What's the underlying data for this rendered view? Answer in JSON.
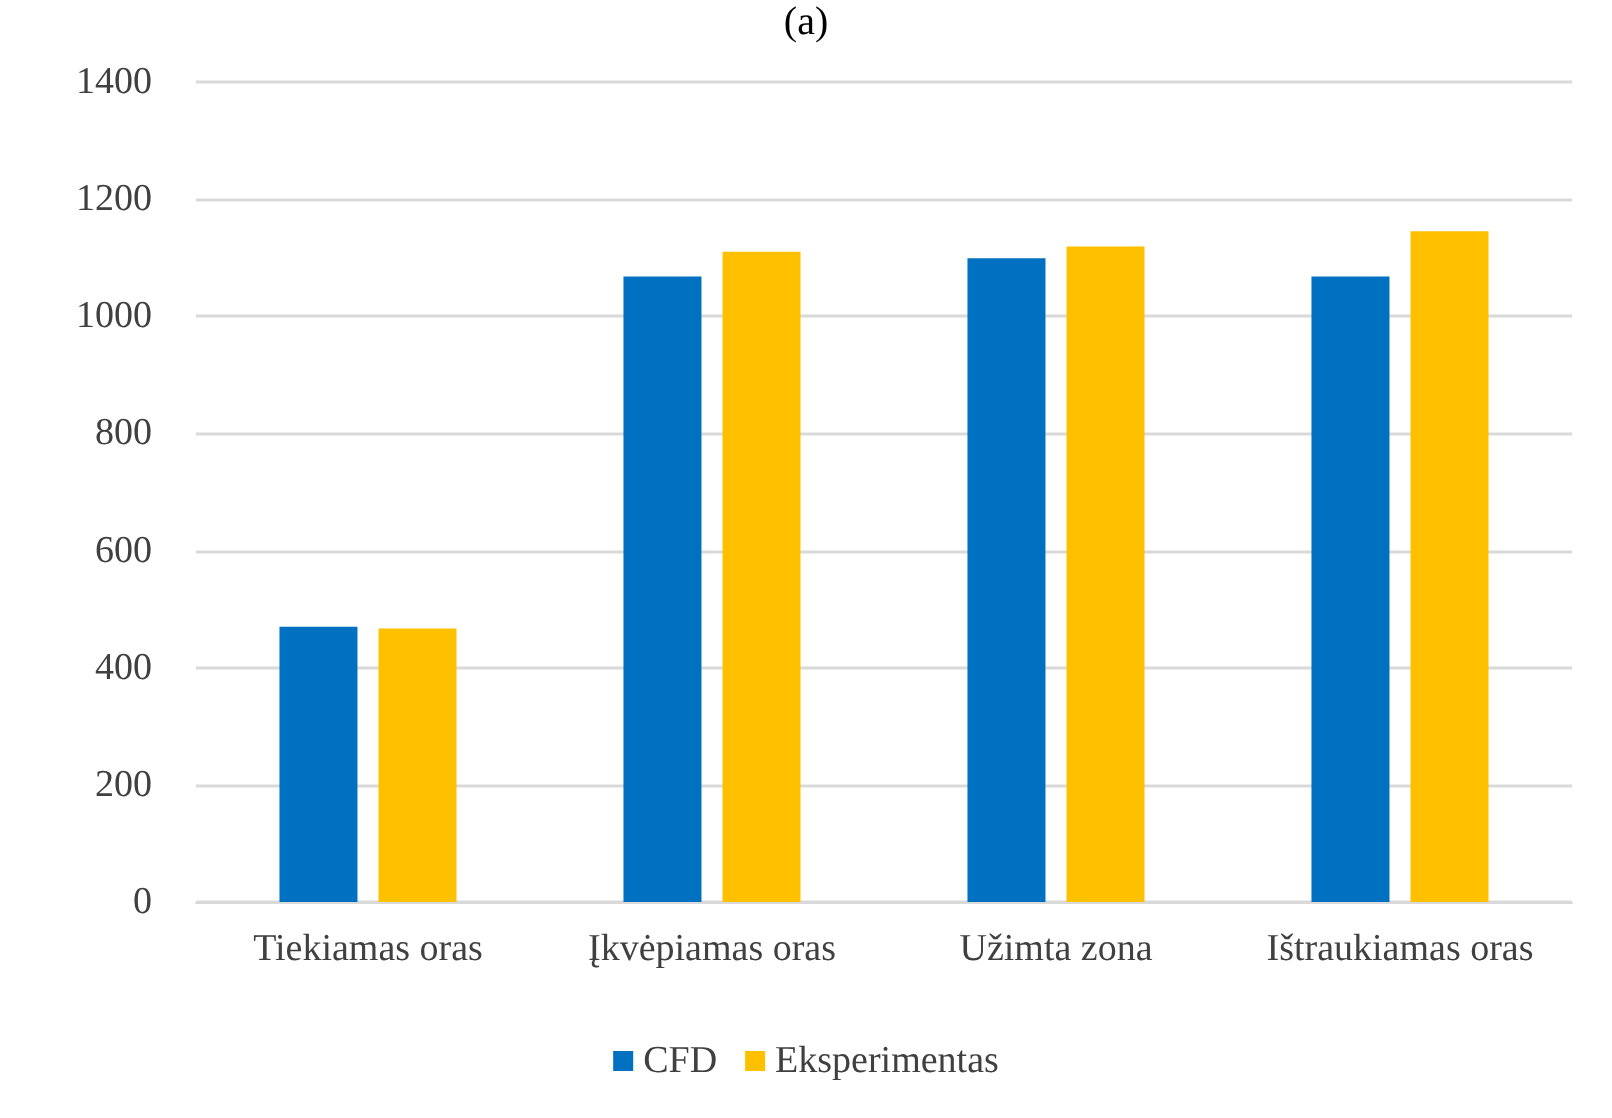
{
  "chart_data": {
    "type": "bar",
    "title": "(a)",
    "categories": [
      "Tiekiamas oras",
      "Įkvėpiamas oras",
      "Užimta zona",
      "Ištraukiamas oras"
    ],
    "series": [
      {
        "name": "CFD",
        "color": "#0070c0",
        "values": [
          470,
          1068,
          1099,
          1068
        ]
      },
      {
        "name": "Eksperimentas",
        "color": "#ffc000",
        "values": [
          467,
          1110,
          1119,
          1145
        ]
      }
    ],
    "ylim": [
      0,
      1400
    ],
    "yticks": [
      0,
      200,
      400,
      600,
      800,
      1000,
      1200,
      1400
    ],
    "grid": "y",
    "legend": "bottom"
  }
}
